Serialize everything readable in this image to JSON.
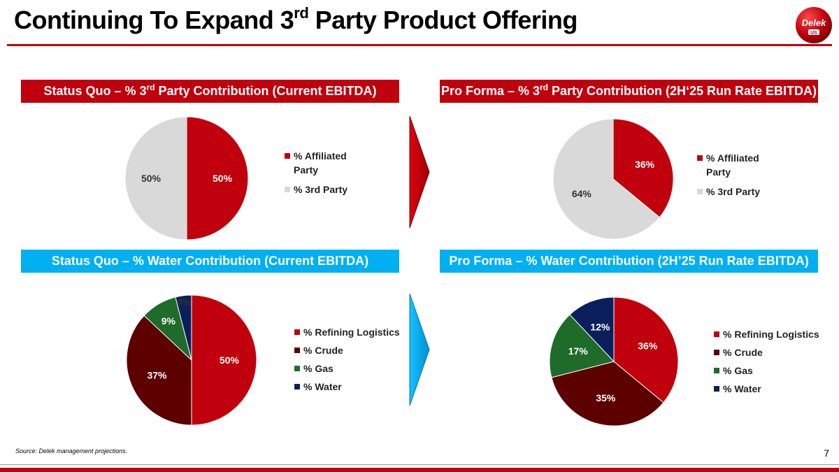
{
  "page": {
    "title_pre": "Continuing To Expand 3",
    "title_sup": "rd",
    "title_post": " Party Product Offering",
    "logo_text": "Delek",
    "logo_sub": "US",
    "source": "Source: Delek management  projections.",
    "page_number": "7"
  },
  "colors": {
    "red": "#c0000c",
    "blue": "#00b0f0",
    "gray": "#d9d9d9",
    "dark_red": "#5c0000",
    "green": "#1e6b2a",
    "navy": "#0b1f5c"
  },
  "banners": {
    "sq_third": {
      "pre": "Status Quo – % 3",
      "sup": "rd",
      "post": " Party Contribution (Current EBITDA)"
    },
    "pf_third": {
      "pre": "Pro Forma – % 3",
      "sup": "rd",
      "post": " Party Contribution (2H‘25 Run Rate EBITDA)"
    },
    "sq_water": {
      "text": "Status Quo – % Water Contribution (Current EBITDA)"
    },
    "pf_water": {
      "text": "Pro Forma – % Water Contribution (2H’25 Run Rate EBITDA)"
    }
  },
  "chart_data": [
    {
      "type": "pie",
      "id": "sq_third",
      "labels": [
        "% Affiliated Party",
        "% 3rd Party"
      ],
      "values": [
        50,
        50
      ],
      "data_labels": [
        "50%",
        "50%"
      ],
      "colors": [
        "#c0000c",
        "#d9d9d9"
      ],
      "legend": "right"
    },
    {
      "type": "pie",
      "id": "pf_third",
      "labels": [
        "% Affiliated Party",
        "% 3rd Party"
      ],
      "values": [
        36,
        64
      ],
      "data_labels": [
        "36%",
        "64%"
      ],
      "colors": [
        "#c0000c",
        "#d9d9d9"
      ],
      "legend": "right"
    },
    {
      "type": "pie",
      "id": "sq_water",
      "labels": [
        "% Refining Logistics",
        "% Crude",
        "% Gas",
        "% Water"
      ],
      "values": [
        50,
        37,
        9,
        4
      ],
      "data_labels": [
        "50%",
        "37%",
        "9%",
        "4%"
      ],
      "colors": [
        "#c0000c",
        "#5c0000",
        "#1e6b2a",
        "#0b1f5c"
      ],
      "legend": "right"
    },
    {
      "type": "pie",
      "id": "pf_water",
      "labels": [
        "% Refining Logistics",
        "% Crude",
        "% Gas",
        "% Water"
      ],
      "values": [
        36,
        35,
        17,
        12
      ],
      "data_labels": [
        "36%",
        "35%",
        "17%",
        "12%"
      ],
      "colors": [
        "#c0000c",
        "#5c0000",
        "#1e6b2a",
        "#0b1f5c"
      ],
      "legend": "right"
    }
  ],
  "legends": {
    "third": [
      "% Affiliated\nParty",
      "% 3rd Party"
    ],
    "water": [
      "% Refining Logistics",
      "% Crude",
      "% Gas",
      "% Water"
    ]
  }
}
